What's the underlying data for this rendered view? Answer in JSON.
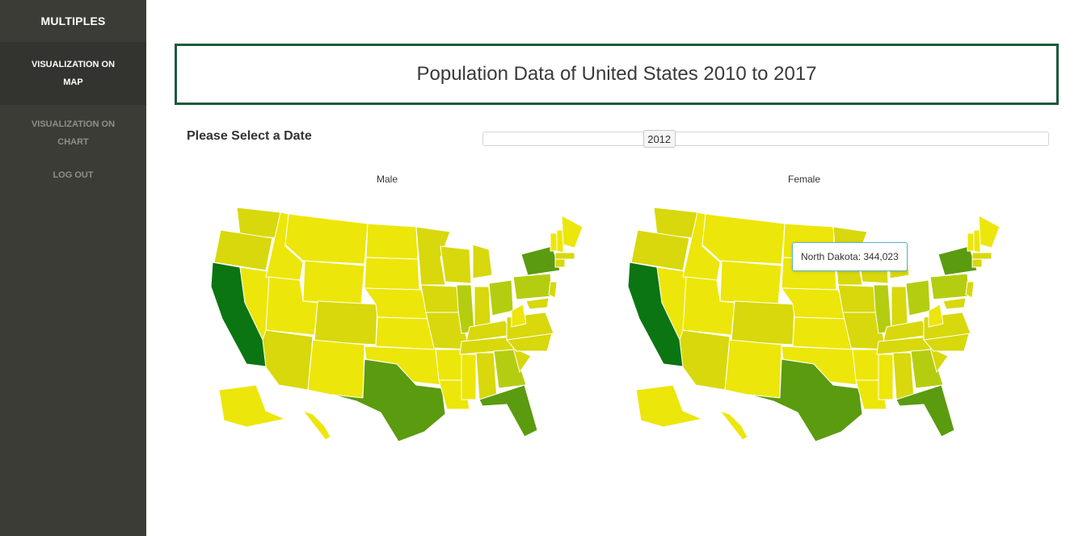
{
  "sidebar": {
    "brand": "MULTIPLES",
    "items": [
      {
        "label": "VISUALIZATION ON MAP",
        "active": true
      },
      {
        "label": "VISUALIZATION ON CHART",
        "active": false
      },
      {
        "label": "LOG OUT",
        "active": false
      }
    ]
  },
  "header": {
    "title": "Population Data of United States 2010 to 2017"
  },
  "date_selector": {
    "label": "Please Select a Date",
    "selected": "2012",
    "min": 2010,
    "max": 2017
  },
  "maps": [
    {
      "title": "Male"
    },
    {
      "title": "Female"
    }
  ],
  "tooltip": {
    "text": "North Dakota: 344,023"
  },
  "colors": {
    "sidebar_bg": "#3c3c37",
    "title_border": "#1c5a3c",
    "scale_low": "#ede60a",
    "scale_mid": "#9fbf12",
    "scale_high": "#0b7512",
    "tooltip_border": "#5bb4d6"
  }
}
